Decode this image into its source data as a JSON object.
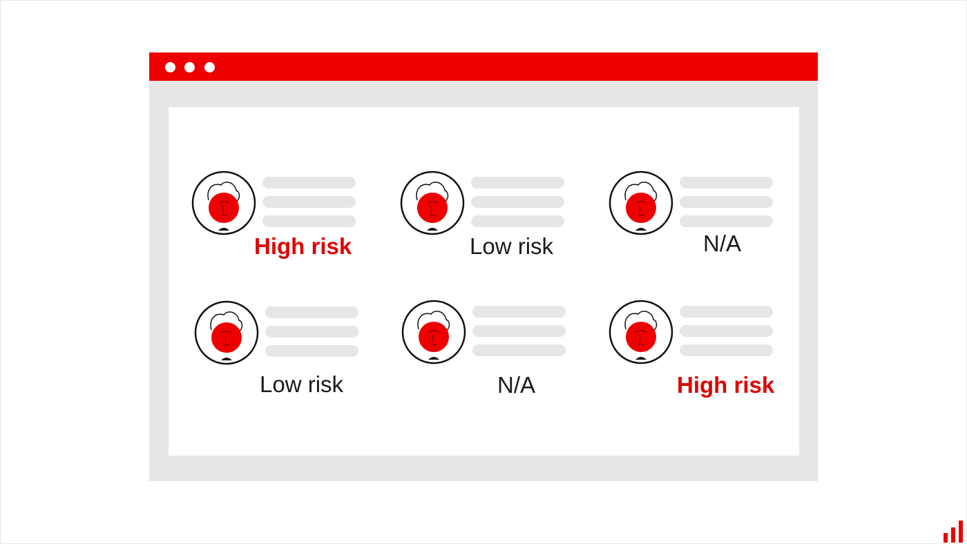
{
  "colors": {
    "accent": "#ee0000",
    "high_risk": "#e00000",
    "neutral_text": "#1a1a1a",
    "panel_gray": "#e6e6e6"
  },
  "window": {
    "controls": [
      "dot",
      "dot",
      "dot"
    ]
  },
  "cards": [
    {
      "label": "High risk",
      "level": "high",
      "icon": "user-avatar-icon"
    },
    {
      "label": "Low risk",
      "level": "low",
      "icon": "user-avatar-icon"
    },
    {
      "label": "N/A",
      "level": "na",
      "icon": "user-avatar-icon"
    },
    {
      "label": "Low risk",
      "level": "low",
      "icon": "user-avatar-icon"
    },
    {
      "label": "N/A",
      "level": "na",
      "icon": "user-avatar-icon"
    },
    {
      "label": "High risk",
      "level": "high",
      "icon": "user-avatar-icon"
    }
  ],
  "brand": {
    "icon": "bar-chart-logo-icon"
  }
}
